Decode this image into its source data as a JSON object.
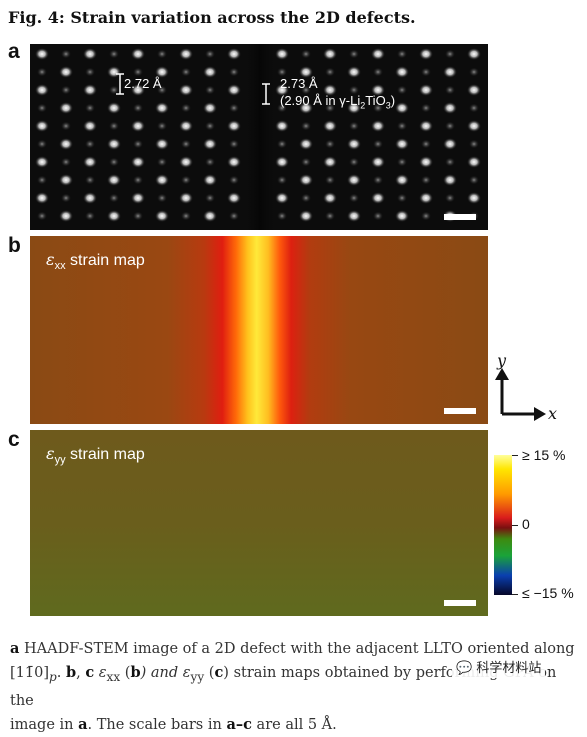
{
  "figure": {
    "title": "Fig. 4: Strain variation across the 2D defects.",
    "panel_labels": [
      "a",
      "b",
      "c"
    ]
  },
  "panel_a": {
    "measurement_left": "2.72 Å",
    "measurement_right": "2.73 Å",
    "measurement_right_note_prefix": "(2.90 Å in γ-Li",
    "measurement_right_note_sub1": "2",
    "measurement_right_note_mid": "TiO",
    "measurement_right_note_sub2": "3",
    "measurement_right_note_suffix": ")"
  },
  "panel_b": {
    "symbol": "ε",
    "subscript": "xx",
    "label": "strain map"
  },
  "panel_c": {
    "symbol": "ε",
    "subscript": "yy",
    "label": "strain map"
  },
  "axes": {
    "y_label": "y",
    "x_label": "x"
  },
  "colorbar": {
    "top_label": "≥ 15 %",
    "middle_label": "0",
    "bottom_label": "≤ −15 %",
    "range_percent": [
      -15,
      15
    ]
  },
  "caption": {
    "p1_bold": "a",
    "p1_text": " HAADF-STEM image of a 2D defect with the adjacent LLTO oriented along ",
    "p2_zone": "[11̄0]",
    "p2_zone_sub": "p",
    "p2_sep1": ". ",
    "p2_b": "b",
    "p2_sep2": ", ",
    "p2_c": "c",
    "p2_exx": " ε",
    "p2_exx_sub": "xx",
    "p2_open_b": " (",
    "p2_b2": "b",
    "p2_and": ") and ε",
    "p2_eyy_sub": "yy",
    "p2_open_c": " (",
    "p2_c2": "c",
    "p2_rest": ") strain maps obtained by performing GPA on the",
    "p3_text1": "image in ",
    "p3_a": "a",
    "p3_text2": ". The scale bars in ",
    "p3_range": "a–c",
    "p3_text3": " are all 5 Å."
  },
  "watermark": "科学材料站"
}
